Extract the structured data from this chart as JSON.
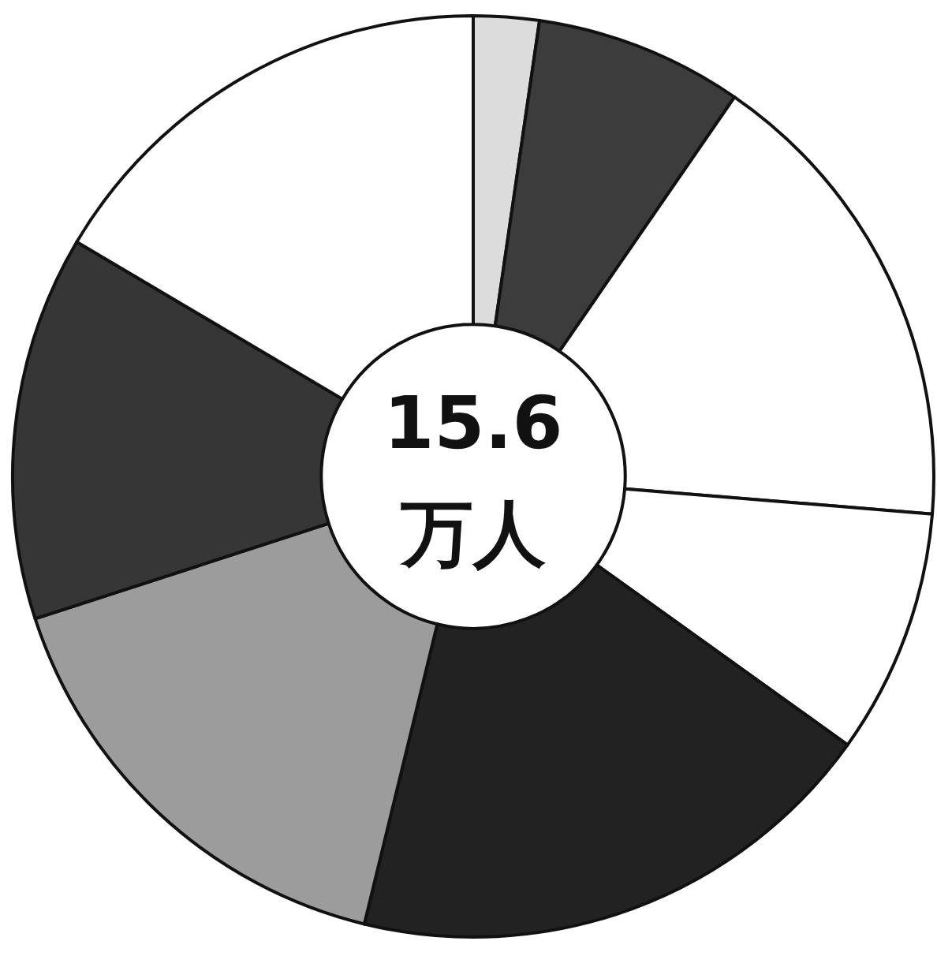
{
  "chart_data": {
    "type": "donut",
    "categories": [
      null,
      null,
      null,
      null,
      null,
      null,
      null,
      null
    ],
    "values": [
      2.3,
      7.3,
      16.7,
      8.6,
      18.9,
      16.2,
      13.5,
      16.5
    ],
    "colors": [
      "#dcdcdc",
      "#3c3c3c",
      "#ffffff",
      "#ffffff",
      "#222222",
      "#9c9c9c",
      "#363636",
      "#ffffff"
    ],
    "annotations": [
      "15.6",
      "万人"
    ]
  }
}
